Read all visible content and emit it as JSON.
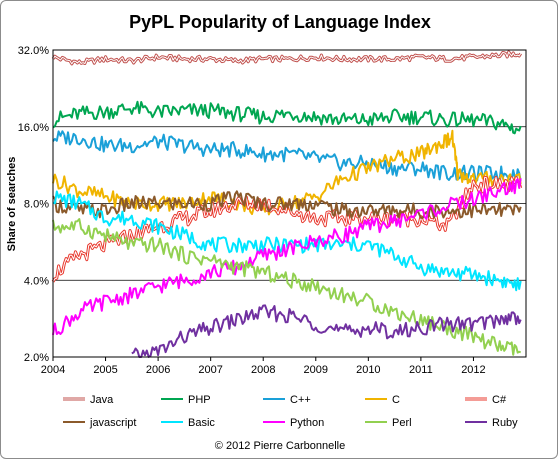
{
  "chart_data": {
    "type": "line",
    "title": "PyPL Popularity of Language Index",
    "ylabel": "Share of searches",
    "xlabel": "",
    "yscale": "log",
    "ylim": [
      2.0,
      32.0
    ],
    "xlim": [
      2004,
      2013
    ],
    "yticks": [
      {
        "value": 2.0,
        "label": "2.0%"
      },
      {
        "value": 4.0,
        "label": "4.0%"
      },
      {
        "value": 8.0,
        "label": "8.0%"
      },
      {
        "value": 16.0,
        "label": "16.0%"
      },
      {
        "value": 32.0,
        "label": "32.0%"
      }
    ],
    "xticks": [
      {
        "value": 2004,
        "label": "2004"
      },
      {
        "value": 2005,
        "label": "2005"
      },
      {
        "value": 2006,
        "label": "2006"
      },
      {
        "value": 2007,
        "label": "2007"
      },
      {
        "value": 2008,
        "label": "2008"
      },
      {
        "value": 2009,
        "label": "2009"
      },
      {
        "value": 2010,
        "label": "2010"
      },
      {
        "value": 2011,
        "label": "2011"
      },
      {
        "value": 2012,
        "label": "2012"
      }
    ],
    "grid": "horizontal",
    "legend_position": "bottom",
    "series": [
      {
        "name": "Java",
        "color": "#c0504d",
        "style": "double",
        "x": [
          2004,
          2004.5,
          2005,
          2005.5,
          2006,
          2006.5,
          2007,
          2007.5,
          2008,
          2008.5,
          2009,
          2009.5,
          2010,
          2010.5,
          2011,
          2011.5,
          2012,
          2012.5,
          2012.9
        ],
        "y": [
          30,
          28.5,
          29.5,
          29,
          30,
          29.5,
          29.5,
          29,
          29.5,
          29.5,
          30,
          29.5,
          29.5,
          29.5,
          30,
          29.5,
          30,
          30.5,
          31
        ]
      },
      {
        "name": "PHP",
        "color": "#00a651",
        "style": "solid",
        "x": [
          2004,
          2004.5,
          2005,
          2005.5,
          2006,
          2006.5,
          2007,
          2007.5,
          2008,
          2008.5,
          2009,
          2009.5,
          2010,
          2010.5,
          2011,
          2011.5,
          2012,
          2012.5,
          2012.9
        ],
        "y": [
          17,
          18,
          18.3,
          19,
          18.2,
          18.5,
          18.5,
          18,
          17.5,
          18,
          17.5,
          17,
          17,
          17.5,
          17.5,
          17,
          17,
          16.5,
          15.5
        ]
      },
      {
        "name": "C++",
        "color": "#1aa0d8",
        "style": "solid",
        "x": [
          2004,
          2004.5,
          2005,
          2005.5,
          2006,
          2006.5,
          2007,
          2007.5,
          2008,
          2008.5,
          2009,
          2009.5,
          2010,
          2010.5,
          2011,
          2011.5,
          2012,
          2012.5,
          2012.9
        ],
        "y": [
          14.5,
          14.5,
          13.5,
          13.5,
          14,
          13.5,
          13,
          13,
          12.5,
          12.5,
          12,
          11.5,
          11.5,
          11,
          11,
          10.5,
          10.5,
          10.5,
          10.5
        ]
      },
      {
        "name": "C",
        "color": "#f0b400",
        "style": "solid",
        "x": [
          2004,
          2004.5,
          2005,
          2005.5,
          2006,
          2006.5,
          2007,
          2007.5,
          2008,
          2008.5,
          2009,
          2009.5,
          2010,
          2010.5,
          2011,
          2011.3,
          2011.6,
          2011.7,
          2012,
          2012.5,
          2012.9
        ],
        "y": [
          10,
          9,
          8.5,
          8,
          8,
          8,
          8.5,
          8,
          7.5,
          8,
          8.5,
          10,
          11,
          12,
          12.5,
          13.5,
          14.5,
          10.5,
          10,
          10,
          10
        ]
      },
      {
        "name": "C#",
        "color": "#e8382e",
        "style": "double",
        "x": [
          2004,
          2004.5,
          2005,
          2005.5,
          2006,
          2006.5,
          2007,
          2007.5,
          2008,
          2008.5,
          2009,
          2009.5,
          2010,
          2010.5,
          2011,
          2011.5,
          2012,
          2012.5,
          2012.9
        ],
        "y": [
          4.2,
          5,
          5.5,
          6,
          6.5,
          7,
          7.5,
          8,
          8,
          7.5,
          7,
          7,
          7,
          7,
          7,
          6.5,
          9.5,
          9.5,
          9.5
        ]
      },
      {
        "name": "javascript",
        "color": "#8b5a2b",
        "style": "solid",
        "x": [
          2004,
          2004.5,
          2005,
          2005.5,
          2006,
          2006.5,
          2007,
          2007.5,
          2008,
          2008.5,
          2009,
          2009.5,
          2010,
          2010.5,
          2011,
          2011.5,
          2012,
          2012.5,
          2012.9
        ],
        "y": [
          8,
          7.5,
          7.5,
          8,
          8,
          8,
          8,
          8.5,
          8,
          8,
          8,
          7.5,
          7.5,
          7.5,
          7.5,
          7.5,
          7.5,
          7.5,
          7.5
        ]
      },
      {
        "name": "Basic",
        "color": "#00e5ff",
        "style": "solid",
        "x": [
          2004,
          2004.5,
          2005,
          2005.5,
          2006,
          2006.5,
          2007,
          2007.5,
          2008,
          2008.5,
          2009,
          2009.5,
          2010,
          2010.5,
          2011,
          2011.5,
          2012,
          2012.5,
          2012.9
        ],
        "y": [
          8.5,
          8,
          7,
          7,
          6.5,
          6,
          5.5,
          5.5,
          5.5,
          5.5,
          5.5,
          5.5,
          5.5,
          5,
          4.5,
          4.3,
          4.2,
          4,
          3.8
        ]
      },
      {
        "name": "Python",
        "color": "#ff00ff",
        "style": "solid",
        "x": [
          2004,
          2004.5,
          2005,
          2005.5,
          2006,
          2006.5,
          2007,
          2007.5,
          2008,
          2008.5,
          2009,
          2009.5,
          2010,
          2010.5,
          2011,
          2011.5,
          2012,
          2012.5,
          2012.9
        ],
        "y": [
          2.5,
          3,
          3.3,
          3.5,
          3.8,
          4,
          4.3,
          4.5,
          5,
          5.3,
          5.7,
          6,
          6.5,
          6.8,
          7.3,
          7.8,
          8.3,
          9,
          9.5
        ]
      },
      {
        "name": "Perl",
        "color": "#92d050",
        "style": "solid",
        "x": [
          2004,
          2004.5,
          2005,
          2005.5,
          2006,
          2006.5,
          2007,
          2007.5,
          2008,
          2008.5,
          2009,
          2009.5,
          2010,
          2010.5,
          2011,
          2011.5,
          2012,
          2012.5,
          2012.9
        ],
        "y": [
          6.5,
          6.5,
          6,
          5.5,
          5.5,
          5,
          4.8,
          4.5,
          4.3,
          4,
          3.8,
          3.5,
          3.3,
          3,
          2.8,
          2.6,
          2.4,
          2.2,
          2.1
        ]
      },
      {
        "name": "Ruby",
        "color": "#7030a0",
        "style": "solid",
        "x": [
          2005.5,
          2006,
          2006.5,
          2007,
          2007.5,
          2008,
          2008.5,
          2009,
          2009.5,
          2010,
          2010.5,
          2011,
          2011.5,
          2012,
          2012.5,
          2012.9
        ],
        "y": [
          2.0,
          2.1,
          2.4,
          2.6,
          2.8,
          3,
          2.9,
          2.7,
          2.5,
          2.6,
          2.5,
          2.6,
          2.7,
          2.7,
          2.8,
          2.9
        ]
      }
    ],
    "footer": "© 2012 Pierre Carbonnelle"
  }
}
